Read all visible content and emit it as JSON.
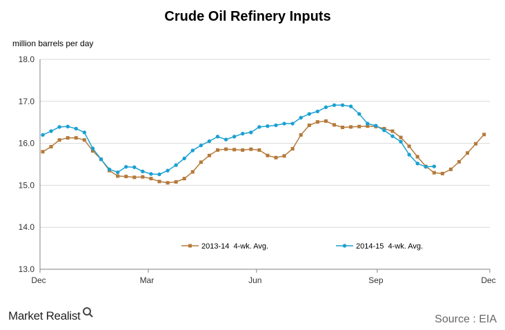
{
  "chart_data": {
    "type": "line",
    "title": "Crude Oil Refinery Inputs",
    "ylabel": "million barrels per day",
    "xlabel": "",
    "ylim": [
      13.0,
      18.0
    ],
    "y_ticks": [
      "13.0",
      "14.0",
      "15.0",
      "16.0",
      "17.0",
      "18.0"
    ],
    "x_ticks": [
      "Dec",
      "Mar",
      "Jun",
      "Sep",
      "Dec"
    ],
    "grid": true,
    "legend_position": "bottom-center",
    "series": [
      {
        "name": "2013-14  4-wk. Avg.",
        "color": "#b5793a",
        "marker": "square",
        "values": [
          15.8,
          15.92,
          16.08,
          16.13,
          16.13,
          16.08,
          15.82,
          15.62,
          15.35,
          15.22,
          15.21,
          15.19,
          15.2,
          15.16,
          15.09,
          15.06,
          15.08,
          15.16,
          15.32,
          15.55,
          15.71,
          15.84,
          15.86,
          15.85,
          15.84,
          15.86,
          15.84,
          15.71,
          15.66,
          15.7,
          15.87,
          16.2,
          16.43,
          16.51,
          16.53,
          16.44,
          16.38,
          16.39,
          16.4,
          16.41,
          16.4,
          16.35,
          16.29,
          16.14,
          15.93,
          15.68,
          15.45,
          15.3,
          15.28,
          15.38,
          15.56,
          15.77,
          15.99,
          16.21
        ]
      },
      {
        "name": "2014-15  4-wk. Avg.",
        "color": "#1aa0d2",
        "marker": "circle",
        "values": [
          16.2,
          16.29,
          16.39,
          16.4,
          16.35,
          16.26,
          15.88,
          15.62,
          15.38,
          15.31,
          15.44,
          15.43,
          15.33,
          15.27,
          15.26,
          15.35,
          15.48,
          15.64,
          15.83,
          15.95,
          16.05,
          16.16,
          16.09,
          16.16,
          16.23,
          16.26,
          16.39,
          16.41,
          16.43,
          16.47,
          16.47,
          16.61,
          16.7,
          16.76,
          16.86,
          16.91,
          16.91,
          16.88,
          16.7,
          16.47,
          16.42,
          16.31,
          16.17,
          16.04,
          15.73,
          15.52,
          15.44,
          15.45
        ]
      }
    ]
  },
  "branding": {
    "logo_text": "Market Realist",
    "source_text": "Source : EIA"
  }
}
